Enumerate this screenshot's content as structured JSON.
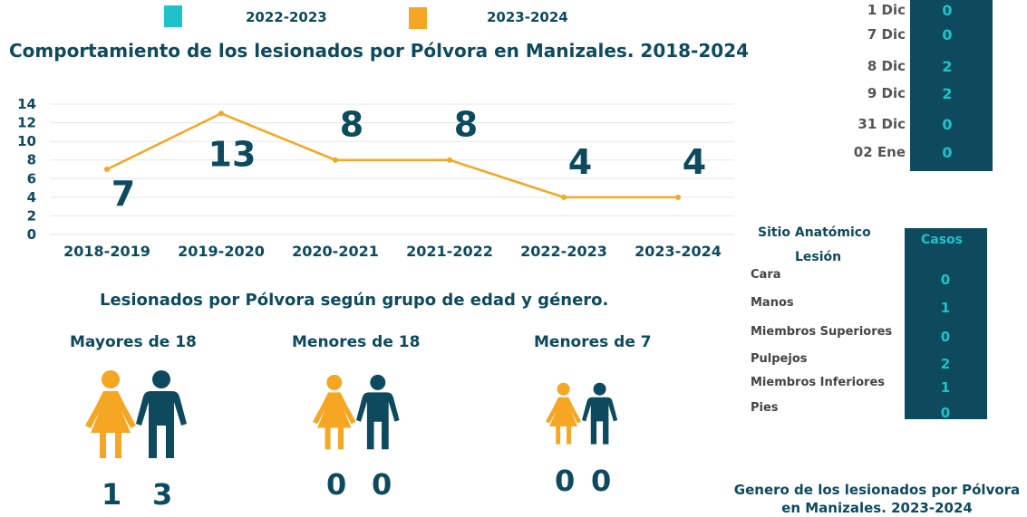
{
  "legend": [
    {
      "label": "2022-2023",
      "color": "#1ec3c9"
    },
    {
      "label": "2023-2024",
      "color": "#f5a623"
    }
  ],
  "title": "Comportamiento de los lesionados por Pólvora en Manizales. 2018-2024",
  "chart_data": {
    "type": "line",
    "categories": [
      "2018-2019",
      "2019-2020",
      "2020-2021",
      "2021-2022",
      "2022-2023",
      "2023-2024"
    ],
    "values": [
      7,
      13,
      8,
      8,
      4,
      4
    ],
    "ylim": [
      0,
      14
    ],
    "yticks": [
      0,
      2,
      4,
      6,
      8,
      10,
      12,
      14
    ],
    "grid": true,
    "line_color": "#f5a623"
  },
  "dates": {
    "items": [
      {
        "label": "1 Dic",
        "value": "0"
      },
      {
        "label": "7 Dic",
        "value": "0"
      },
      {
        "label": "8 Dic",
        "value": "2"
      },
      {
        "label": "9 Dic",
        "value": "2"
      },
      {
        "label": "31 Dic",
        "value": "0"
      },
      {
        "label": "02 Ene",
        "value": "0"
      }
    ]
  },
  "anatomic": {
    "header_label_1": "Sitio Anatómico",
    "header_label_2": "Lesión",
    "header_cases": "Casos",
    "items": [
      {
        "label": "Cara",
        "value": "0"
      },
      {
        "label": "Manos",
        "value": "1"
      },
      {
        "label": "Miembros Superiores",
        "value": "0"
      },
      {
        "label": "Pulpejos",
        "value": "2"
      },
      {
        "label": "Miembros Inferiores",
        "value": "1"
      },
      {
        "label": "Pies",
        "value": "0"
      }
    ]
  },
  "age_gender": {
    "subtitle": "Lesionados por Pólvora según grupo de edad y género.",
    "female_color": "#f5a623",
    "male_color": "#0d4a5e",
    "groups": [
      {
        "title": "Mayores de 18",
        "female": "1",
        "male": "3"
      },
      {
        "title": "Menores de 18",
        "female": "0",
        "male": "0"
      },
      {
        "title": "Menores de 7",
        "female": "0",
        "male": "0"
      }
    ]
  },
  "footer": {
    "line1": "Genero de los lesionados por Pólvora",
    "line2": "en Manizales. 2023-2024"
  }
}
